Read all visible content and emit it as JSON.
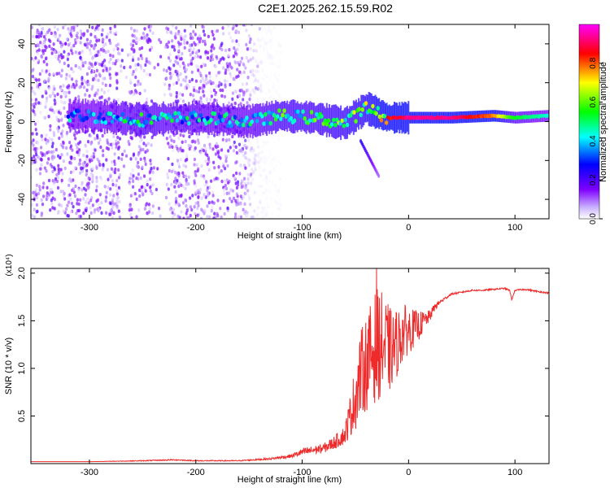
{
  "title": "C2E1.2025.262.15.59.R02",
  "colors": {
    "snr_line": "#ee2a2a",
    "spectrogram_main": "#4b1fe0",
    "axis": "#000000"
  },
  "chart_data": [
    {
      "type": "heatmap",
      "name": "spectrogram",
      "xlabel": "Height of straight line (km)",
      "ylabel": "Frequency (Hz)",
      "xlim": [
        -355,
        132
      ],
      "ylim": [
        -50,
        50
      ],
      "x_ticks": [
        -300,
        -200,
        -100,
        0,
        100
      ],
      "y_ticks": [
        -40,
        -20,
        0,
        20,
        40
      ],
      "colorbar": {
        "label": "Normalized spectral amplitude",
        "range": [
          0,
          1
        ],
        "ticks": [
          "0.0",
          "0.2",
          "0.4",
          "0.6",
          "0.8"
        ],
        "colors": [
          "#ffffff",
          "#7f00ff",
          "#0000ff",
          "#00ffff",
          "#00ff00",
          "#ffff00",
          "#ff0000",
          "#ff00ff"
        ]
      },
      "features": [
        {
          "description_key": "noise_band",
          "x_range": [
            -355,
            -140
          ],
          "freq_range": [
            -50,
            50
          ],
          "amplitude": 0.1
        },
        {
          "description_key": "carrier_track",
          "x": [
            -300,
            -250,
            -200,
            -150,
            -120,
            -90,
            -60,
            -40,
            -20,
            0,
            40,
            80,
            100,
            132
          ],
          "freq": [
            3,
            1,
            2,
            0,
            3,
            2,
            -1,
            7,
            2,
            2,
            2,
            3,
            2,
            3
          ],
          "amplitude": [
            0.45,
            0.55,
            0.5,
            0.5,
            0.6,
            0.6,
            0.65,
            0.7,
            0.85,
            0.95,
            0.95,
            0.8,
            0.55,
            0.45
          ]
        },
        {
          "description_key": "fading_branch",
          "x": [
            -45,
            -35,
            -28
          ],
          "freq": [
            -10,
            -20,
            -28
          ],
          "amplitude": 0.25
        }
      ]
    },
    {
      "type": "line",
      "name": "snr",
      "xlabel": "Height of straight line (km)",
      "ylabel": "SNR (10 * v/v)",
      "scale_label": "(x10⁴)",
      "xlim": [
        -355,
        132
      ],
      "ylim": [
        0,
        2.05
      ],
      "x_ticks": [
        -300,
        -200,
        -100,
        0,
        100
      ],
      "y_ticks": [
        0.5,
        1.0,
        1.5,
        2.0
      ],
      "x": [
        -355,
        -300,
        -250,
        -220,
        -200,
        -160,
        -130,
        -110,
        -100,
        -80,
        -70,
        -60,
        -50,
        -45,
        -40,
        -35,
        -30,
        -25,
        -20,
        -15,
        -10,
        -5,
        0,
        5,
        10,
        15,
        20,
        25,
        30,
        40,
        50,
        60,
        70,
        80,
        90,
        95,
        97,
        100,
        110,
        120,
        132
      ],
      "y": [
        0.02,
        0.02,
        0.03,
        0.04,
        0.03,
        0.03,
        0.05,
        0.08,
        0.12,
        0.16,
        0.22,
        0.3,
        0.7,
        0.95,
        1.05,
        1.15,
        1.25,
        1.25,
        1.2,
        1.2,
        1.28,
        1.38,
        1.4,
        1.42,
        1.45,
        1.5,
        1.55,
        1.65,
        1.7,
        1.78,
        1.8,
        1.82,
        1.82,
        1.83,
        1.84,
        1.82,
        1.72,
        1.82,
        1.83,
        1.81,
        1.79
      ],
      "noise_amplitude": [
        0,
        0,
        0.005,
        0.006,
        0.005,
        0.005,
        0.01,
        0.02,
        0.04,
        0.05,
        0.07,
        0.1,
        0.35,
        0.45,
        0.5,
        0.55,
        0.6,
        0.55,
        0.5,
        0.4,
        0.35,
        0.3,
        0.25,
        0.2,
        0.15,
        0.1,
        0.06,
        0.04,
        0.02,
        0.01,
        0.008,
        0.008,
        0.008,
        0.008,
        0.008,
        0.008,
        0.008,
        0.008,
        0.008,
        0.008,
        0.008
      ],
      "peak": {
        "x": -30,
        "y": 2.05
      }
    }
  ]
}
